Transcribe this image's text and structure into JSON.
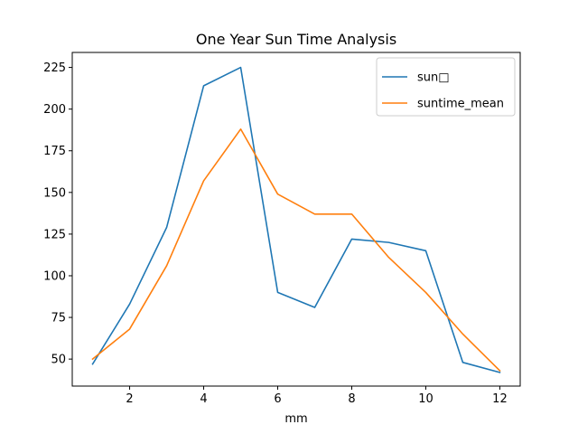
{
  "chart_data": {
    "type": "line",
    "title": "One Year Sun Time Analysis",
    "xlabel": "mm",
    "ylabel": "",
    "x": [
      1,
      2,
      3,
      4,
      5,
      6,
      7,
      8,
      9,
      10,
      11,
      12
    ],
    "xticks": [
      2,
      4,
      6,
      8,
      10,
      12
    ],
    "yticks": [
      50,
      75,
      100,
      125,
      150,
      175,
      200,
      225
    ],
    "xlim": [
      0.45,
      12.55
    ],
    "ylim": [
      33.8,
      234.0
    ],
    "grid": false,
    "legend_position": "top-right",
    "series": [
      {
        "name": "sun□",
        "color": "#1f77b4",
        "values": [
          47,
          83,
          129,
          214,
          225,
          90,
          81,
          122,
          120,
          115,
          48,
          42
        ]
      },
      {
        "name": "suntime_mean",
        "color": "#ff7f0e",
        "values": [
          50,
          68,
          106,
          157,
          188,
          149,
          137,
          137,
          111,
          90,
          65,
          43
        ]
      }
    ]
  }
}
